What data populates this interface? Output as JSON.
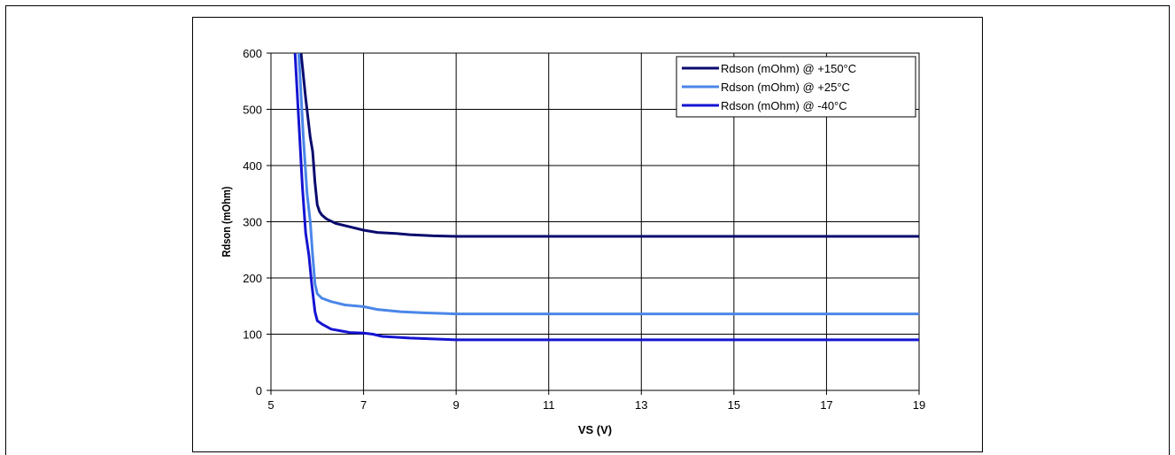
{
  "chart_data": {
    "type": "line",
    "title": "",
    "xlabel": "VS (V)",
    "ylabel": "Rdson (mOhm)",
    "xlim": [
      5,
      19
    ],
    "ylim": [
      0,
      600
    ],
    "xticks": [
      5,
      7,
      9,
      11,
      13,
      15,
      17,
      19
    ],
    "yticks": [
      0,
      100,
      200,
      300,
      400,
      500,
      600
    ],
    "grid": true,
    "legend_position": "top-right",
    "series": [
      {
        "name": "Rdson (mOhm) @ +150°C",
        "color": "#0a0a6e",
        "x": [
          5.65,
          5.75,
          5.85,
          5.9,
          5.95,
          6.0,
          6.05,
          6.1,
          6.2,
          6.4,
          6.7,
          7.0,
          7.3,
          7.7,
          8.0,
          8.5,
          9.0,
          11,
          13,
          15,
          17,
          19
        ],
        "y": [
          600,
          520,
          450,
          425,
          370,
          330,
          318,
          312,
          305,
          297,
          291,
          285,
          281,
          279,
          277,
          275,
          274,
          274,
          274,
          274,
          274,
          274
        ]
      },
      {
        "name": "Rdson (mOhm) @ +25°C",
        "color": "#4a86e8",
        "x": [
          5.6,
          5.7,
          5.78,
          5.85,
          5.9,
          5.95,
          6.0,
          6.1,
          6.3,
          6.6,
          7.0,
          7.3,
          7.8,
          8.3,
          9.0,
          11,
          13,
          15,
          17,
          19
        ],
        "y": [
          600,
          450,
          350,
          300,
          240,
          190,
          172,
          164,
          158,
          152,
          149,
          144,
          140,
          138,
          136,
          136,
          136,
          136,
          136,
          136
        ]
      },
      {
        "name": "Rdson (mOhm) @ -40°C",
        "color": "#1414d2",
        "x": [
          5.52,
          5.6,
          5.68,
          5.75,
          5.82,
          5.88,
          5.95,
          6.0,
          6.1,
          6.3,
          6.7,
          7.0,
          7.2,
          7.4,
          8.0,
          9.0,
          11,
          13,
          15,
          17,
          19
        ],
        "y": [
          600,
          480,
          360,
          280,
          240,
          190,
          140,
          124,
          118,
          109,
          103,
          102,
          100,
          96,
          93,
          90,
          90,
          90,
          90,
          90,
          90
        ]
      }
    ]
  }
}
